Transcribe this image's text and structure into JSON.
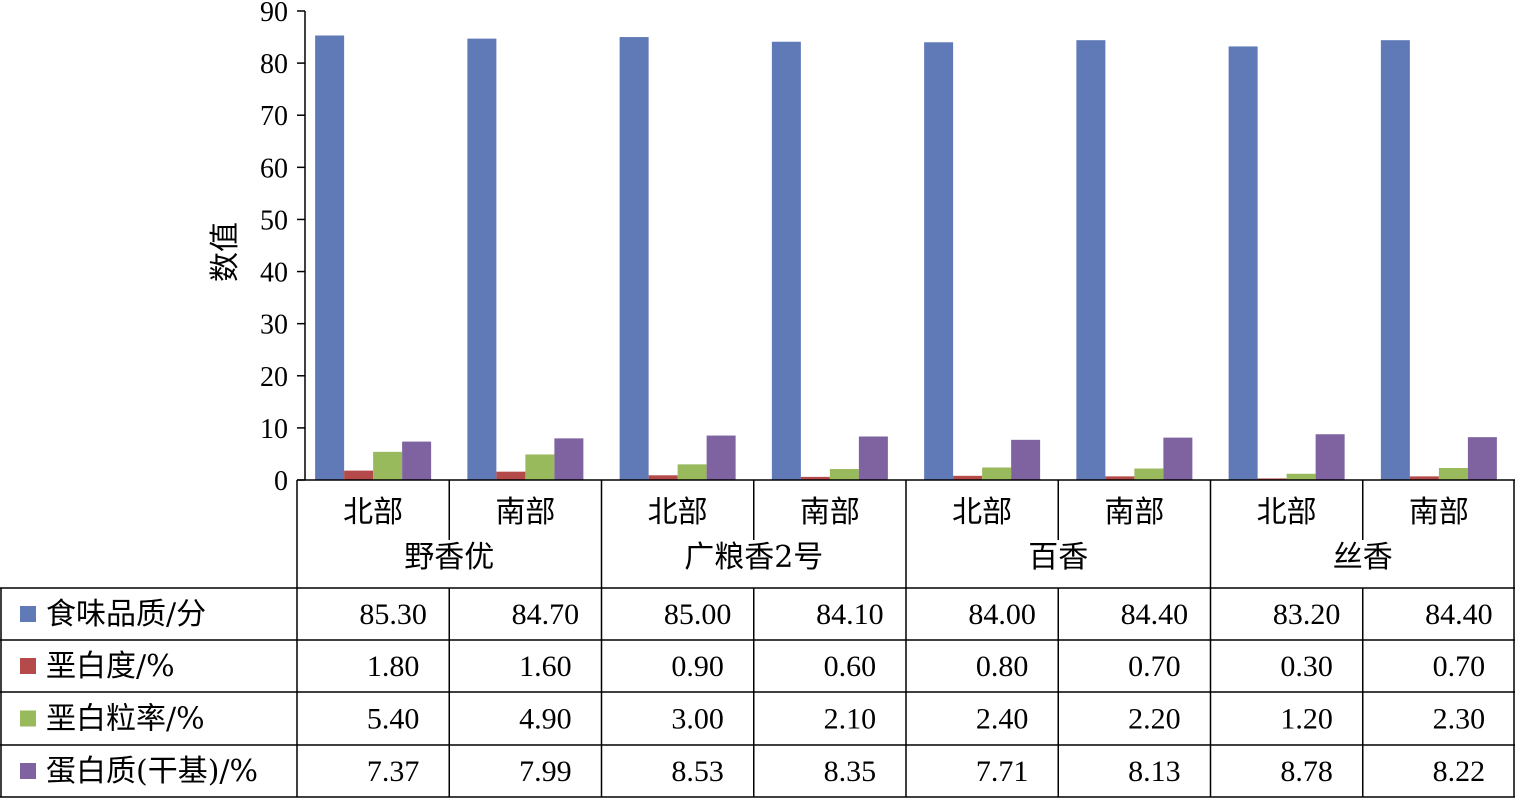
{
  "chart_data": {
    "type": "bar",
    "ylabel": "数值",
    "ylim": [
      0,
      90
    ],
    "yticks": [
      "0",
      "10",
      "20",
      "30",
      "40",
      "50",
      "60",
      "70",
      "80",
      "90"
    ],
    "groups": [
      {
        "name": "野香优",
        "subs": [
          "北部",
          "南部"
        ]
      },
      {
        "name": "广粮香2号",
        "subs": [
          "北部",
          "南部"
        ]
      },
      {
        "name": "百香",
        "subs": [
          "北部",
          "南部"
        ]
      },
      {
        "name": "丝香",
        "subs": [
          "北部",
          "南部"
        ]
      }
    ],
    "series": [
      {
        "name": "食味品质/分",
        "color": "#6079b7",
        "values": [
          85.3,
          84.7,
          85.0,
          84.1,
          84.0,
          84.4,
          83.2,
          84.4
        ],
        "labels": [
          "85.30",
          "84.70",
          "85.00",
          "84.10",
          "84.00",
          "84.40",
          "83.20",
          "84.40"
        ]
      },
      {
        "name": "垩白度/%",
        "color": "#b54a4a",
        "values": [
          1.8,
          1.6,
          0.9,
          0.6,
          0.8,
          0.7,
          0.3,
          0.7
        ],
        "labels": [
          "1.80",
          "1.60",
          "0.90",
          "0.60",
          "0.80",
          "0.70",
          "0.30",
          "0.70"
        ]
      },
      {
        "name": "垩白粒率/%",
        "color": "#99b95d",
        "values": [
          5.4,
          4.9,
          3.0,
          2.1,
          2.4,
          2.2,
          1.2,
          2.3
        ],
        "labels": [
          "5.40",
          "4.90",
          "3.00",
          "2.10",
          "2.40",
          "2.20",
          "1.20",
          "2.30"
        ]
      },
      {
        "name": "蛋白质(干基)/%",
        "color": "#7f63a0",
        "values": [
          7.37,
          7.99,
          8.53,
          8.35,
          7.71,
          8.13,
          8.78,
          8.22
        ],
        "labels": [
          "7.37",
          "7.99",
          "8.53",
          "8.35",
          "7.71",
          "8.13",
          "8.78",
          "8.22"
        ]
      }
    ]
  }
}
